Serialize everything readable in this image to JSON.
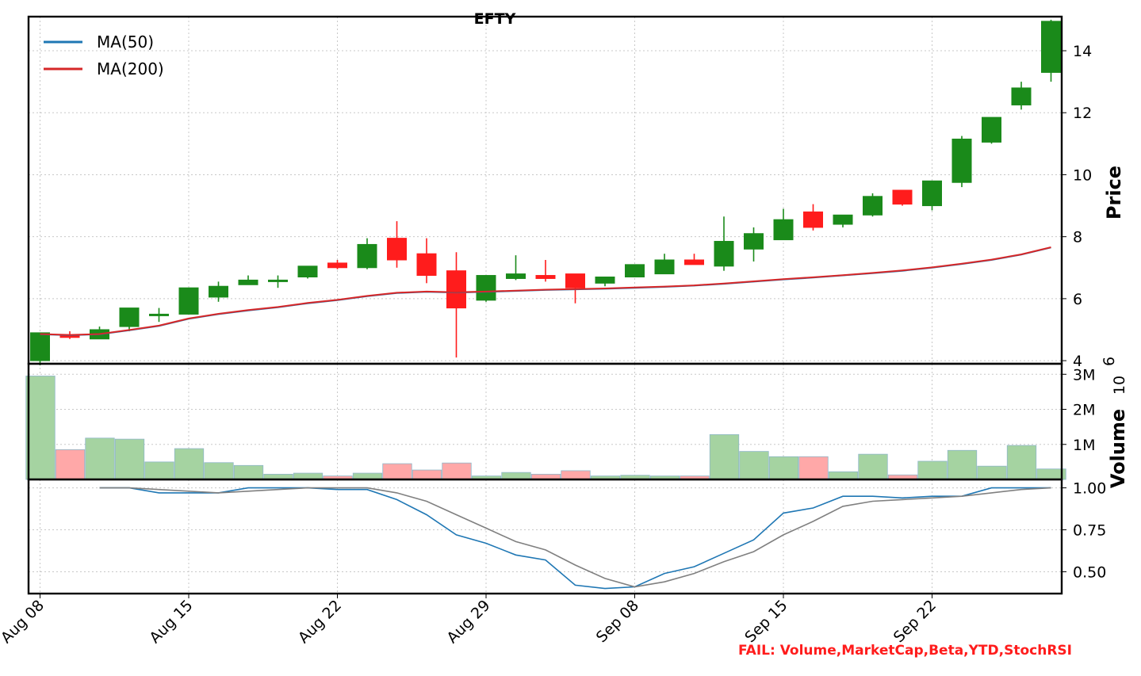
{
  "colors": {
    "up": "#1a8a1a",
    "down": "#ff1c1c",
    "vol_up": "#a5d3a1",
    "vol_down": "#ffa8a8",
    "ma50": "#1f77b4",
    "ma200": "#d62728",
    "osc_a": "#1f77b4",
    "osc_b": "#808080",
    "fail": "#ff1c1c"
  },
  "chart_data": [
    {
      "type": "candlestick",
      "title": "EFTY",
      "ylabel": "Price",
      "ylim": [
        3.9,
        15.1
      ],
      "yticks": [
        4,
        6,
        8,
        10,
        12,
        14
      ],
      "ytick_labels": [
        "4",
        "6",
        "8",
        "10",
        "12",
        "14"
      ],
      "legend_position": "top-left",
      "grid": true,
      "x_tick_labels": [
        "Aug 08",
        "Aug 15",
        "Aug 22",
        "Aug 29",
        "Sep 08",
        "Sep 15",
        "Sep 22"
      ],
      "x_tick_index": [
        0,
        5,
        10,
        15,
        20,
        25,
        30
      ],
      "ohlc": [
        {
          "o": 4.0,
          "h": 4.9,
          "l": 3.85,
          "c": 4.9
        },
        {
          "o": 4.8,
          "h": 4.95,
          "l": 4.7,
          "c": 4.75
        },
        {
          "o": 4.7,
          "h": 5.1,
          "l": 4.7,
          "c": 5.0
        },
        {
          "o": 5.1,
          "h": 5.7,
          "l": 4.95,
          "c": 5.7
        },
        {
          "o": 5.45,
          "h": 5.7,
          "l": 5.25,
          "c": 5.5
        },
        {
          "o": 5.5,
          "h": 6.35,
          "l": 5.5,
          "c": 6.35
        },
        {
          "o": 6.05,
          "h": 6.55,
          "l": 5.9,
          "c": 6.4
        },
        {
          "o": 6.45,
          "h": 6.75,
          "l": 6.45,
          "c": 6.6
        },
        {
          "o": 6.6,
          "h": 6.75,
          "l": 6.35,
          "c": 6.6
        },
        {
          "o": 6.7,
          "h": 7.05,
          "l": 6.65,
          "c": 7.05
        },
        {
          "o": 7.15,
          "h": 7.25,
          "l": 6.95,
          "c": 7.0
        },
        {
          "o": 7.0,
          "h": 7.95,
          "l": 6.95,
          "c": 7.75
        },
        {
          "o": 7.95,
          "h": 8.5,
          "l": 7.0,
          "c": 7.25
        },
        {
          "o": 7.45,
          "h": 7.95,
          "l": 6.5,
          "c": 6.75
        },
        {
          "o": 6.9,
          "h": 7.5,
          "l": 4.1,
          "c": 5.7
        },
        {
          "o": 5.95,
          "h": 6.75,
          "l": 5.9,
          "c": 6.75
        },
        {
          "o": 6.65,
          "h": 7.4,
          "l": 6.6,
          "c": 6.8
        },
        {
          "o": 6.75,
          "h": 7.25,
          "l": 6.55,
          "c": 6.65
        },
        {
          "o": 6.8,
          "h": 6.8,
          "l": 5.85,
          "c": 6.35
        },
        {
          "o": 6.5,
          "h": 6.7,
          "l": 6.4,
          "c": 6.7
        },
        {
          "o": 6.7,
          "h": 7.1,
          "l": 6.7,
          "c": 7.1
        },
        {
          "o": 6.8,
          "h": 7.45,
          "l": 6.8,
          "c": 7.25
        },
        {
          "o": 7.25,
          "h": 7.45,
          "l": 7.1,
          "c": 7.1
        },
        {
          "o": 7.05,
          "h": 8.65,
          "l": 6.9,
          "c": 7.85
        },
        {
          "o": 7.6,
          "h": 8.3,
          "l": 7.2,
          "c": 8.1
        },
        {
          "o": 7.9,
          "h": 8.9,
          "l": 7.9,
          "c": 8.55
        },
        {
          "o": 8.8,
          "h": 9.05,
          "l": 8.2,
          "c": 8.3
        },
        {
          "o": 8.4,
          "h": 8.7,
          "l": 8.3,
          "c": 8.7
        },
        {
          "o": 8.7,
          "h": 9.4,
          "l": 8.65,
          "c": 9.3
        },
        {
          "o": 9.5,
          "h": 9.5,
          "l": 9.0,
          "c": 9.05
        },
        {
          "o": 9.0,
          "h": 9.8,
          "l": 8.85,
          "c": 9.8
        },
        {
          "o": 9.75,
          "h": 11.25,
          "l": 9.6,
          "c": 11.15
        },
        {
          "o": 11.05,
          "h": 11.85,
          "l": 11.0,
          "c": 11.85
        },
        {
          "o": 12.25,
          "h": 13.0,
          "l": 12.1,
          "c": 12.8
        },
        {
          "o": 13.3,
          "h": 15.0,
          "l": 13.0,
          "c": 14.95
        }
      ],
      "series": [
        {
          "name": "MA(50)",
          "values": [
            4.85,
            4.82,
            4.85,
            4.98,
            5.12,
            5.35,
            5.5,
            5.62,
            5.72,
            5.85,
            5.95,
            6.08,
            6.18,
            6.22,
            6.2,
            6.22,
            6.25,
            6.28,
            6.3,
            6.32,
            6.35,
            6.38,
            6.42,
            6.48,
            6.55,
            6.62,
            6.68,
            6.75,
            6.82,
            6.9,
            7.0,
            7.12,
            7.25,
            7.42,
            7.65
          ]
        },
        {
          "name": "MA(200)",
          "values": [
            4.86,
            4.83,
            4.86,
            4.99,
            5.13,
            5.36,
            5.51,
            5.63,
            5.73,
            5.86,
            5.96,
            6.09,
            6.19,
            6.23,
            6.21,
            6.23,
            6.26,
            6.29,
            6.31,
            6.33,
            6.36,
            6.39,
            6.43,
            6.49,
            6.56,
            6.63,
            6.69,
            6.76,
            6.83,
            6.91,
            7.01,
            7.13,
            7.26,
            7.43,
            7.66
          ]
        }
      ]
    },
    {
      "type": "bar",
      "ylabel": "Volume",
      "y_multiplier": "10",
      "y_multiplier_exp": "6",
      "ylim": [
        0,
        3.3
      ],
      "yticks": [
        1,
        2,
        3
      ],
      "ytick_labels": [
        "1M",
        "2M",
        "3M"
      ],
      "values": [
        2.95,
        0.85,
        1.18,
        1.15,
        0.5,
        0.88,
        0.48,
        0.4,
        0.15,
        0.18,
        0.1,
        0.18,
        0.45,
        0.27,
        0.47,
        0.1,
        0.2,
        0.15,
        0.25,
        0.1,
        0.12,
        0.1,
        0.1,
        1.28,
        0.8,
        0.65,
        0.65,
        0.22,
        0.72,
        0.13,
        0.52,
        0.83,
        0.38,
        0.97,
        0.3
      ],
      "direction": [
        "up",
        "down",
        "up",
        "up",
        "up",
        "up",
        "up",
        "up",
        "up",
        "up",
        "down",
        "up",
        "down",
        "down",
        "down",
        "up",
        "up",
        "down",
        "down",
        "up",
        "up",
        "up",
        "down",
        "up",
        "up",
        "up",
        "down",
        "up",
        "up",
        "down",
        "up",
        "up",
        "up",
        "up",
        "up"
      ]
    },
    {
      "type": "line",
      "ylim": [
        0.37,
        1.05
      ],
      "yticks": [
        0.5,
        0.75,
        1.0
      ],
      "ytick_labels": [
        "0.50",
        "0.75",
        "1.00"
      ],
      "start_index": 2,
      "series": [
        {
          "values": [
            1.0,
            1.0,
            0.97,
            0.97,
            0.97,
            1.0,
            1.0,
            1.0,
            0.99,
            0.99,
            0.93,
            0.84,
            0.72,
            0.67,
            0.6,
            0.57,
            0.42,
            0.4,
            0.41,
            0.49,
            0.53,
            0.61,
            0.69,
            0.85,
            0.88,
            0.95,
            0.95,
            0.94,
            0.95,
            0.95,
            1.0,
            1.0,
            1.0
          ]
        },
        {
          "values": [
            1.0,
            1.0,
            0.99,
            0.98,
            0.97,
            0.98,
            0.99,
            1.0,
            1.0,
            1.0,
            0.97,
            0.92,
            0.84,
            0.76,
            0.68,
            0.63,
            0.54,
            0.46,
            0.41,
            0.44,
            0.49,
            0.56,
            0.62,
            0.72,
            0.8,
            0.89,
            0.92,
            0.93,
            0.94,
            0.95,
            0.97,
            0.99,
            1.0
          ]
        }
      ]
    }
  ],
  "footer": {
    "fail_text": "FAIL: Volume,MarketCap,Beta,YTD,StochRSI"
  }
}
